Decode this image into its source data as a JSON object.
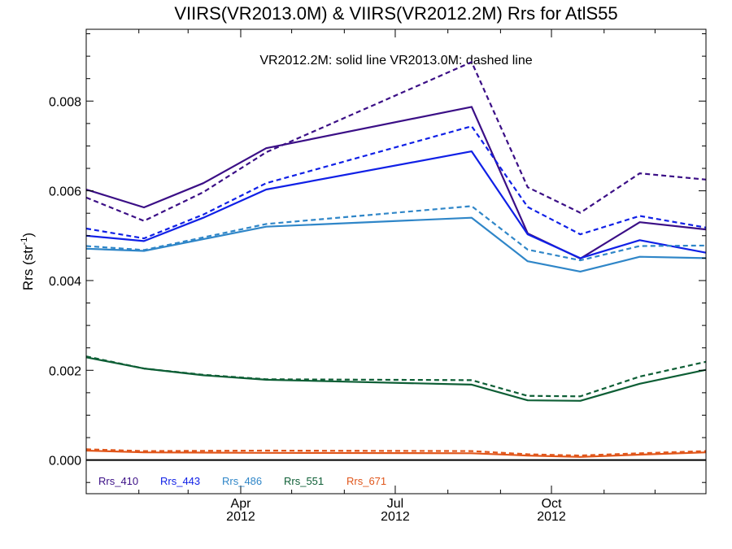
{
  "chart_data": {
    "type": "line",
    "title": "VIIRS(VR2013.0M) & VIIRS(VR2012.2M)  Rrs for AtlS55",
    "note": "VR2012.2M: solid line   VR2013.0M: dashed line",
    "ylabel": {
      "base": "Rrs (str",
      "sup": "-1",
      "close": ")"
    },
    "xlabel": "",
    "xlim": [
      "2012-01-01",
      "2012-12-31"
    ],
    "ylim": [
      -0.00075,
      0.0096
    ],
    "grid": false,
    "legend_position": "bottom-left",
    "x_ticks": [
      {
        "date": "2012-04-01",
        "month": "Apr",
        "year": "2012"
      },
      {
        "date": "2012-07-01",
        "month": "Jul",
        "year": "2012"
      },
      {
        "date": "2012-10-01",
        "month": "Oct",
        "year": "2012"
      }
    ],
    "y_ticks": [
      {
        "value": 0.0,
        "label": "0.000"
      },
      {
        "value": 0.002,
        "label": "0.002"
      },
      {
        "value": 0.004,
        "label": "0.004"
      },
      {
        "value": 0.006,
        "label": "0.006"
      },
      {
        "value": 0.008,
        "label": "0.008"
      }
    ],
    "zero_line": true,
    "series": [
      {
        "name": "Rrs_410",
        "color": "#3b0f86",
        "version": "VR2012.2M",
        "style": "solid",
        "x": [
          "2012-01-01",
          "2012-02-04",
          "2012-03-10",
          "2012-04-16",
          "2012-08-15",
          "2012-09-17",
          "2012-10-18",
          "2012-11-22",
          "2012-12-31"
        ],
        "y": [
          0.00603,
          0.00563,
          0.00617,
          0.00695,
          0.00787,
          0.00505,
          0.00449,
          0.0053,
          0.00514
        ]
      },
      {
        "name": "Rrs_410",
        "color": "#3b0f86",
        "version": "VR2013.0M",
        "style": "dashed",
        "x": [
          "2012-01-01",
          "2012-02-04",
          "2012-03-10",
          "2012-04-16",
          "2012-08-15",
          "2012-09-17",
          "2012-10-18",
          "2012-11-22",
          "2012-12-31"
        ],
        "y": [
          0.00585,
          0.00533,
          0.00597,
          0.00686,
          0.00887,
          0.00608,
          0.00551,
          0.00639,
          0.00625
        ]
      },
      {
        "name": "Rrs_443",
        "color": "#1020e6",
        "version": "VR2012.2M",
        "style": "solid",
        "x": [
          "2012-01-01",
          "2012-02-04",
          "2012-03-10",
          "2012-04-16",
          "2012-08-15",
          "2012-09-17",
          "2012-10-18",
          "2012-11-22",
          "2012-12-31"
        ],
        "y": [
          0.005,
          0.00488,
          0.0054,
          0.00603,
          0.00688,
          0.00503,
          0.0045,
          0.0049,
          0.00462
        ]
      },
      {
        "name": "Rrs_443",
        "color": "#1020e6",
        "version": "VR2013.0M",
        "style": "dashed",
        "x": [
          "2012-01-01",
          "2012-02-04",
          "2012-03-10",
          "2012-04-16",
          "2012-08-15",
          "2012-09-17",
          "2012-10-18",
          "2012-11-22",
          "2012-12-31"
        ],
        "y": [
          0.00516,
          0.00494,
          0.00547,
          0.00617,
          0.00744,
          0.00564,
          0.00503,
          0.00544,
          0.00518
        ]
      },
      {
        "name": "Rrs_486",
        "color": "#2f86c8",
        "version": "VR2012.2M",
        "style": "solid",
        "x": [
          "2012-01-01",
          "2012-02-04",
          "2012-04-16",
          "2012-08-15",
          "2012-09-17",
          "2012-10-18",
          "2012-11-22",
          "2012-12-31"
        ],
        "y": [
          0.00471,
          0.00466,
          0.0052,
          0.0054,
          0.00443,
          0.0042,
          0.00453,
          0.0045
        ]
      },
      {
        "name": "Rrs_486",
        "color": "#2f86c8",
        "version": "VR2013.0M",
        "style": "dashed",
        "x": [
          "2012-01-01",
          "2012-02-04",
          "2012-04-16",
          "2012-08-15",
          "2012-09-17",
          "2012-10-18",
          "2012-11-22",
          "2012-12-31"
        ],
        "y": [
          0.00477,
          0.00468,
          0.00526,
          0.00566,
          0.00469,
          0.00445,
          0.00477,
          0.00478
        ]
      },
      {
        "name": "Rrs_551",
        "color": "#0d5e35",
        "version": "VR2012.2M",
        "style": "solid",
        "x": [
          "2012-01-01",
          "2012-02-04",
          "2012-03-10",
          "2012-04-16",
          "2012-08-15",
          "2012-09-17",
          "2012-10-18",
          "2012-11-22",
          "2012-12-31"
        ],
        "y": [
          0.00229,
          0.00204,
          0.00189,
          0.00179,
          0.00168,
          0.00133,
          0.00132,
          0.0017,
          0.00201
        ]
      },
      {
        "name": "Rrs_551",
        "color": "#0d5e35",
        "version": "VR2013.0M",
        "style": "dashed",
        "x": [
          "2012-01-01",
          "2012-02-04",
          "2012-03-10",
          "2012-04-16",
          "2012-08-15",
          "2012-09-17",
          "2012-10-18",
          "2012-11-22",
          "2012-12-31"
        ],
        "y": [
          0.00231,
          0.00204,
          0.0019,
          0.0018,
          0.00178,
          0.00143,
          0.00142,
          0.00186,
          0.00219
        ]
      },
      {
        "name": "Rrs_671",
        "color": "#e0561b",
        "version": "VR2012.2M",
        "style": "solid",
        "x": [
          "2012-01-01",
          "2012-02-04",
          "2012-04-16",
          "2012-08-15",
          "2012-09-17",
          "2012-10-18",
          "2012-11-22",
          "2012-12-31"
        ],
        "y": [
          0.00021,
          0.00017,
          0.00016,
          0.00015,
          0.0001,
          7e-05,
          0.00012,
          0.00017
        ]
      },
      {
        "name": "Rrs_671",
        "color": "#e0561b",
        "version": "VR2013.0M",
        "style": "dashed",
        "x": [
          "2012-01-01",
          "2012-02-04",
          "2012-04-16",
          "2012-08-15",
          "2012-09-17",
          "2012-10-18",
          "2012-11-22",
          "2012-12-31"
        ],
        "y": [
          0.00024,
          0.0002,
          0.00021,
          0.0002,
          0.00013,
          0.0001,
          0.00015,
          0.0002
        ]
      }
    ],
    "legend": [
      {
        "label": "Rrs_410",
        "color": "#3b0f86"
      },
      {
        "label": "Rrs_443",
        "color": "#1020e6"
      },
      {
        "label": "Rrs_486",
        "color": "#2f86c8"
      },
      {
        "label": "Rrs_551",
        "color": "#0d5e35"
      },
      {
        "label": "Rrs_671",
        "color": "#e0561b"
      }
    ]
  }
}
